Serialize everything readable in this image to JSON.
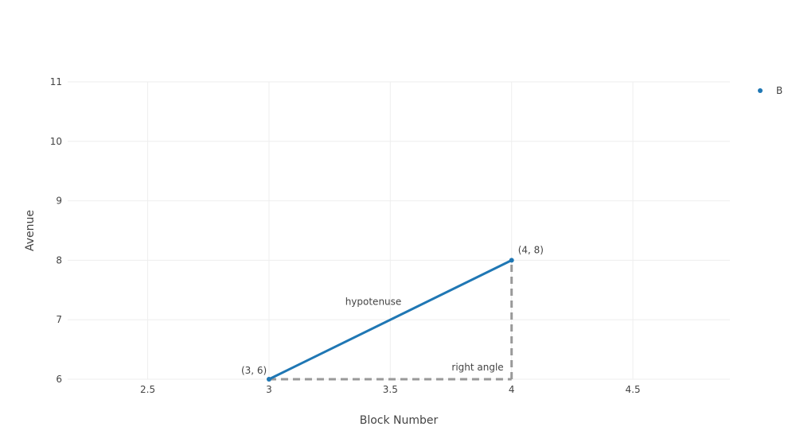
{
  "chart_data": {
    "type": "line",
    "xlabel": "Block Number",
    "ylabel": "Avenue",
    "xlim": [
      2.17,
      4.9
    ],
    "ylim": [
      6,
      11
    ],
    "xticks": [
      2.5,
      3,
      3.5,
      4,
      4.5
    ],
    "yticks": [
      6,
      7,
      8,
      9,
      10,
      11
    ],
    "grid": true,
    "legend_position": "top-right",
    "series": [
      {
        "name": "B",
        "x": [
          3,
          4
        ],
        "y": [
          6,
          8
        ],
        "color": "#1f77b4"
      }
    ],
    "guides": [
      {
        "x": [
          3,
          4
        ],
        "y": [
          6,
          6
        ],
        "color": "#999999",
        "style": "dashed"
      },
      {
        "x": [
          4,
          4
        ],
        "y": [
          6,
          8
        ],
        "color": "#999999",
        "style": "dashed"
      }
    ],
    "annotations": [
      {
        "text": "(3, 6)",
        "x": 3,
        "y": 6
      },
      {
        "text": "(4, 8)",
        "x": 4,
        "y": 8
      },
      {
        "text": "hypotenuse",
        "x": 3.43,
        "y": 7.25
      },
      {
        "text": "right angle",
        "x": 3.86,
        "y": 6.15
      }
    ]
  }
}
